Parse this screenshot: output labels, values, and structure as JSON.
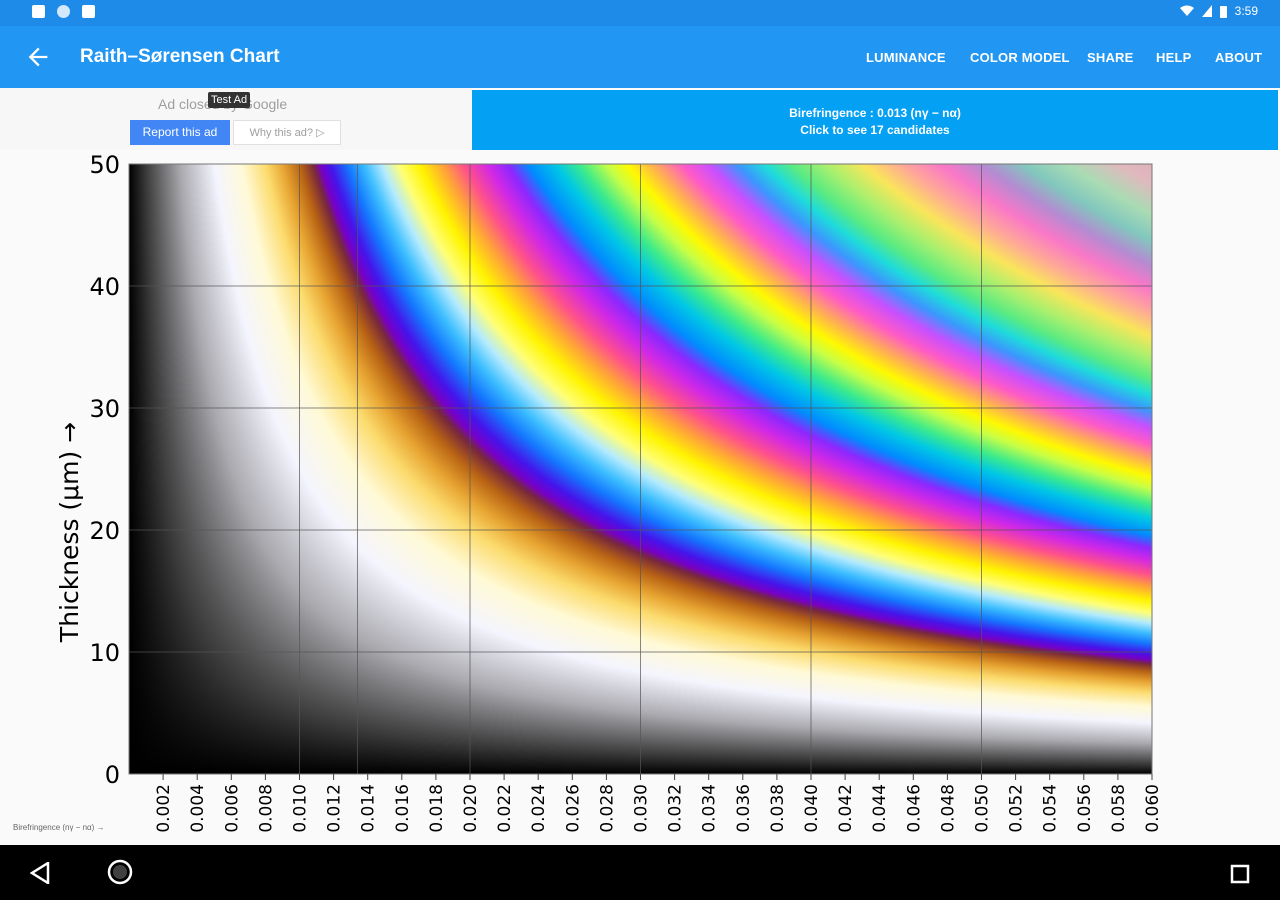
{
  "status_bar": {
    "time": "3:59",
    "left_icons": [
      "notification-icon",
      "sync-icon",
      "sd-card-icon"
    ],
    "right_icons": [
      "wifi-icon",
      "signal-icon",
      "battery-icon"
    ]
  },
  "app_bar": {
    "title": "Raith–Sørensen Chart",
    "back_icon": "arrow-left-icon",
    "menu": [
      "LUMINANCE",
      "COLOR MODEL",
      "SHARE",
      "HELP",
      "ABOUT"
    ],
    "color": "#2196f3"
  },
  "ad": {
    "closed_text": "Ad closed by Google",
    "test_label": "Test Ad",
    "report_label": "Report this ad",
    "why_label": "Why this ad? ▷"
  },
  "birefringence_banner": {
    "line1": "Birefringence : 0.013 (nγ − nα)",
    "line2": "Click to see 17 candidates",
    "color": "#03a0f4"
  },
  "chart_data": {
    "type": "heatmap",
    "ylabel": "Thickness (μm) →",
    "xlabel": "Birefringence (nγ − nα) →",
    "xlim": [
      0,
      0.06
    ],
    "ylim": [
      0,
      50
    ],
    "y_ticks": [
      "0",
      "10",
      "20",
      "30",
      "40",
      "50"
    ],
    "x_ticks": [
      "0.002",
      "0.004",
      "0.006",
      "0.008",
      "0.010",
      "0.012",
      "0.014",
      "0.016",
      "0.018",
      "0.020",
      "0.022",
      "0.024",
      "0.026",
      "0.028",
      "0.030",
      "0.032",
      "0.034",
      "0.036",
      "0.038",
      "0.040",
      "0.042",
      "0.044",
      "0.046",
      "0.048",
      "0.050",
      "0.052",
      "0.054",
      "0.056",
      "0.058",
      "0.060"
    ],
    "x_gridlines": [
      0.01,
      0.0134,
      0.02,
      0.03,
      0.04,
      0.05
    ],
    "y_gridlines": [
      10,
      20,
      30,
      40
    ],
    "grid": true,
    "color_scale": "Michel-Lévy interference colors by retardation (thickness × birefringence)"
  },
  "nav_bar": {
    "icons": [
      "back-triangle-icon",
      "home-circle-icon",
      "recents-square-icon"
    ]
  }
}
